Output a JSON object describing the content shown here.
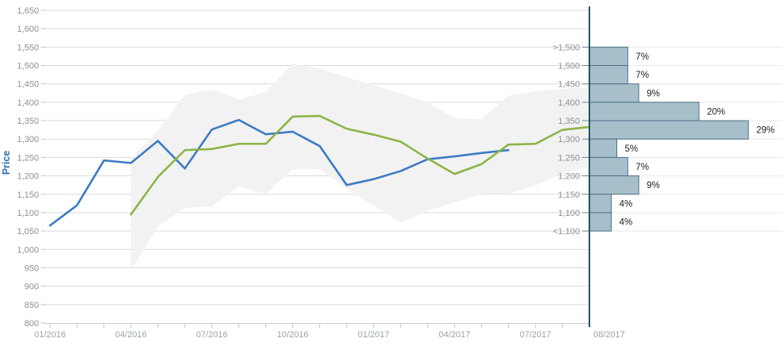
{
  "chart_data": {
    "type": "line",
    "title": "",
    "ylabel": "Price",
    "grid": true,
    "legend_position": "none",
    "y_axis": {
      "min": 800,
      "max": 1650,
      "step": 50
    },
    "y_tick_labels": [
      "800",
      "850",
      "900",
      "950",
      "1,000",
      "1,050",
      "1,100",
      "1,150",
      "1,200",
      "1,250",
      "1,300",
      "1,350",
      "1,400",
      "1,450",
      "1,500",
      "1,550",
      "1,600",
      "1,650"
    ],
    "x_categories": [
      "01/2016",
      "02/2016",
      "03/2016",
      "04/2016",
      "05/2016",
      "06/2016",
      "07/2016",
      "08/2016",
      "09/2016",
      "10/2016",
      "11/2016",
      "12/2016",
      "01/2017",
      "02/2017",
      "03/2017",
      "04/2017",
      "05/2017",
      "06/2017",
      "07/2017",
      "08/2017"
    ],
    "x_major_tick_labels": [
      {
        "i": 0,
        "label": "01/2016"
      },
      {
        "i": 3,
        "label": "04/2016"
      },
      {
        "i": 6,
        "label": "07/2016"
      },
      {
        "i": 9,
        "label": "10/2016"
      },
      {
        "i": 12,
        "label": "01/2017"
      },
      {
        "i": 15,
        "label": "04/2017"
      },
      {
        "i": 18,
        "label": "07/2017"
      }
    ],
    "x_end_label": "08/2017",
    "series": [
      {
        "name": "blue_line",
        "color": "#3b7cc4",
        "start_index": 0,
        "values": [
          1065,
          1120,
          1242,
          1235,
          1295,
          1220,
          1326,
          1352,
          1313,
          1320,
          1281,
          1175,
          1191,
          1213,
          1245,
          1253,
          1262,
          1270
        ]
      },
      {
        "name": "green_line",
        "color": "#8cb446",
        "start_index": 3,
        "values": [
          1095,
          1197,
          1270,
          1273,
          1287,
          1287,
          1361,
          1363,
          1328,
          1312,
          1293,
          1247,
          1205,
          1232,
          1285,
          1287,
          1325,
          1333
        ]
      }
    ],
    "band": {
      "name": "range_band",
      "color": "#f2f2f2",
      "start_index": 3,
      "low": [
        943,
        1063,
        1113,
        1117,
        1172,
        1151,
        1218,
        1218,
        1165,
        1119,
        1073,
        1105,
        1128,
        1150,
        1152,
        1173,
        1207,
        1225
      ],
      "high": [
        1248,
        1323,
        1420,
        1435,
        1407,
        1428,
        1505,
        1492,
        1468,
        1446,
        1424,
        1400,
        1357,
        1354,
        1418,
        1430,
        1437,
        1440
      ]
    },
    "histogram": {
      "top_edge_value": 1550,
      "bin_size": 50,
      "edge_labels": [
        ">1,500",
        "1,500",
        "1,450",
        "1,400",
        "1,350",
        "1,300",
        "1,250",
        "1,200",
        "1,150",
        "1,100",
        "<1,100"
      ],
      "percents": [
        7,
        7,
        9,
        20,
        29,
        5,
        7,
        9,
        4,
        4
      ],
      "percent_labels": [
        "7%",
        "7%",
        "9%",
        "20%",
        "29%",
        "5%",
        "7%",
        "9%",
        "4%",
        "4%"
      ]
    }
  },
  "colors": {
    "grid": "#d9d9d9",
    "grid_right_ext": "#e7e7e7",
    "band_fill": "#f2f2f2",
    "blue_line": "#3b7cc4",
    "green_line": "#8cb446",
    "y_tick_label": "#8f8f8f",
    "y_tick_mark": "#c0c0c0",
    "x_tick_label": "#9aa3a8",
    "x_axis_line": "#c7d1d6",
    "x_tick_mark": "#b9c5cb",
    "hist_bar_fill": "#a6bfcb",
    "hist_bar_stroke": "#4d7186",
    "hist_axis": "#205366",
    "hist_edge_tick": "#6f8794",
    "hist_edge_label": "#8a9196",
    "percent_label": "#1d1d1d",
    "price_title": "#2d70b8"
  }
}
